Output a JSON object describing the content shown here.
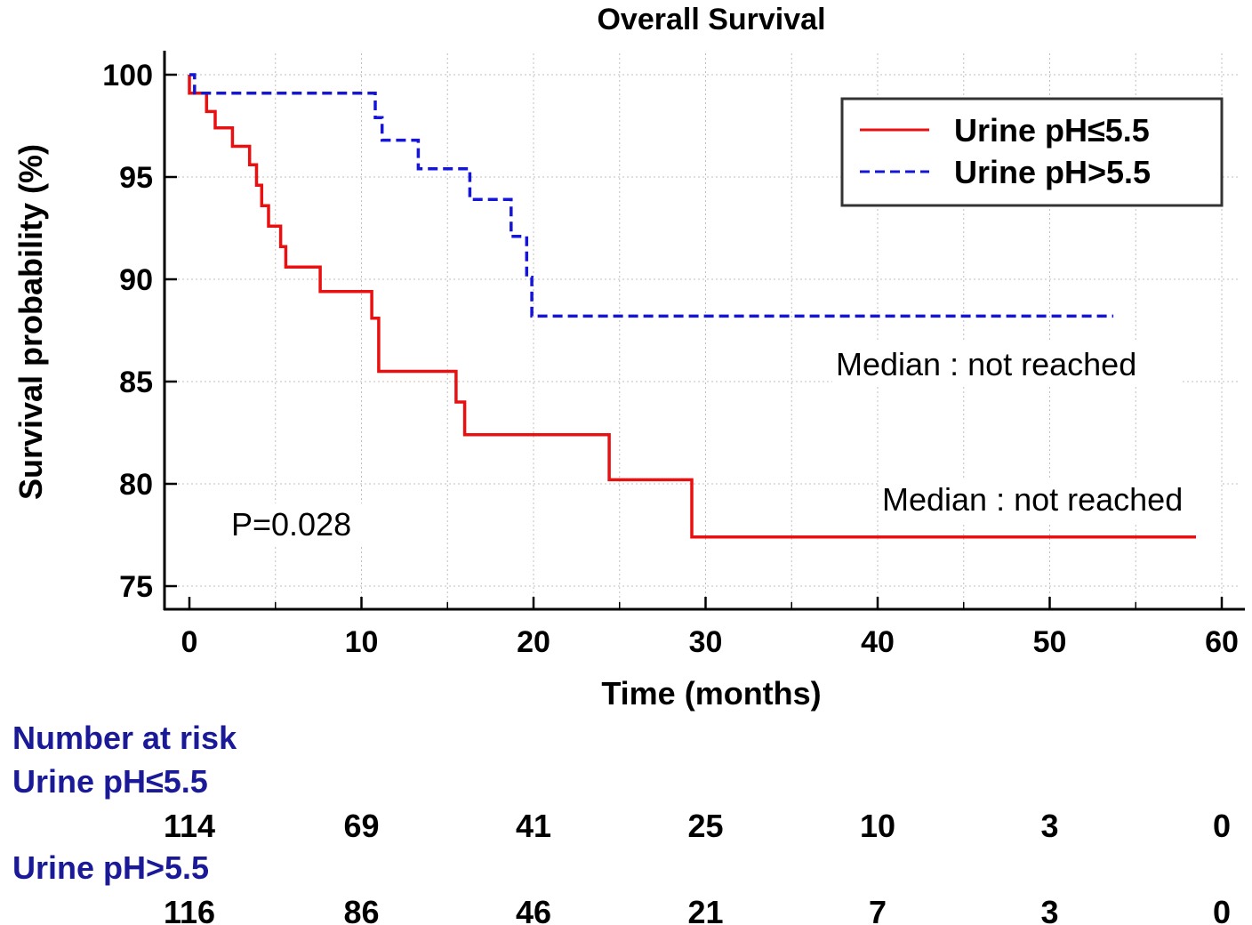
{
  "chart_data": {
    "type": "line",
    "subtype": "kaplan-meier",
    "title": "Overall Survival",
    "xlabel": "Time (months)",
    "ylabel": "Survival probability (%)",
    "xlim": [
      0,
      60
    ],
    "ylim": [
      75,
      100
    ],
    "x_ticks": [
      0,
      10,
      20,
      30,
      40,
      50,
      60
    ],
    "x_tick_labels": [
      "0",
      "10",
      "20",
      "30",
      "40",
      "50",
      "60"
    ],
    "y_ticks": [
      75,
      80,
      85,
      90,
      95,
      100
    ],
    "y_tick_labels": [
      "75",
      "80",
      "85",
      "90",
      "95",
      "100"
    ],
    "grid": true,
    "legend_position": "top-right",
    "series": [
      {
        "name": "Urine pH≤5.5",
        "color": "#e81010",
        "style": "solid",
        "x": [
          0,
          0,
          1.0,
          1.0,
          1.5,
          1.5,
          2.5,
          2.5,
          3.5,
          3.5,
          3.9,
          3.9,
          4.2,
          4.2,
          4.6,
          4.6,
          5.3,
          5.3,
          5.6,
          5.6,
          7.6,
          7.6,
          10.6,
          10.6,
          11.0,
          11.0,
          15.5,
          15.5,
          16.0,
          16.0,
          24.4,
          24.4,
          29.2,
          29.2,
          58.5
        ],
        "y": [
          100,
          99.1,
          99.1,
          98.2,
          98.2,
          97.4,
          97.4,
          96.5,
          96.5,
          95.6,
          95.6,
          94.6,
          94.6,
          93.6,
          93.6,
          92.6,
          92.6,
          91.6,
          91.6,
          90.6,
          90.6,
          89.4,
          89.4,
          88.1,
          88.1,
          85.5,
          85.5,
          84.0,
          84.0,
          82.4,
          82.4,
          80.2,
          80.2,
          77.4,
          77.4
        ]
      },
      {
        "name": "Urine pH>5.5",
        "color": "#1515d6",
        "style": "dashed",
        "x": [
          0,
          0.3,
          0.3,
          10.8,
          10.8,
          11.2,
          11.2,
          13.3,
          13.3,
          16.3,
          16.3,
          18.7,
          18.7,
          19.6,
          19.6,
          19.9,
          19.9,
          53.7
        ],
        "y": [
          100,
          100,
          99.1,
          99.1,
          97.9,
          97.9,
          96.8,
          96.8,
          95.4,
          95.4,
          93.9,
          93.9,
          92.1,
          92.1,
          90.1,
          90.1,
          88.2,
          88.2
        ]
      }
    ],
    "annotations": {
      "p_value": "P=0.028",
      "median_high": "Median : not reached",
      "median_low": "Median : not reached"
    },
    "risk_table": {
      "heading": "Number at risk",
      "time_points": [
        0,
        10,
        20,
        30,
        40,
        50,
        60
      ],
      "rows": [
        {
          "label": "Urine pH≤5.5",
          "values": [
            "114",
            "69",
            "41",
            "25",
            "10",
            "3",
            "0"
          ]
        },
        {
          "label": "Urine pH>5.5",
          "values": [
            "116",
            "86",
            "46",
            "21",
            "7",
            "3",
            "0"
          ]
        }
      ]
    }
  }
}
